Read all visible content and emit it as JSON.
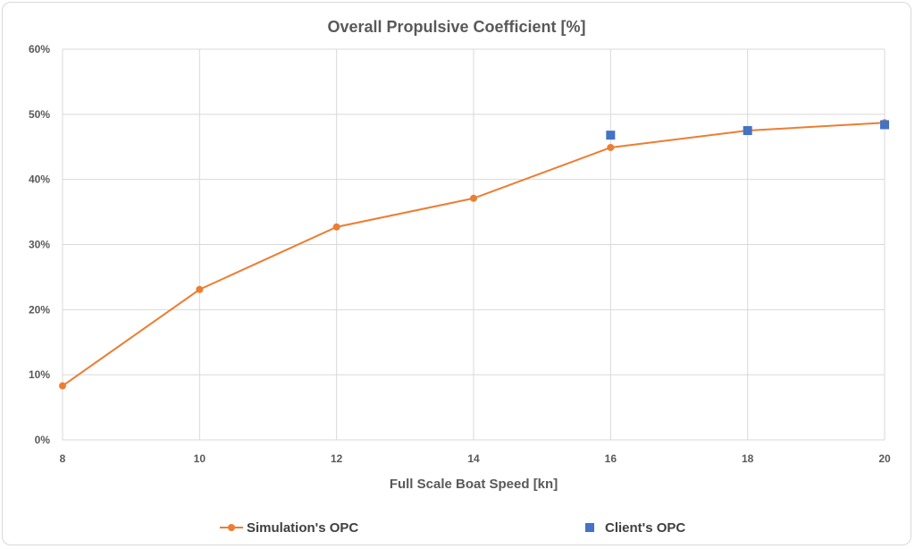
{
  "chart_data": {
    "type": "line",
    "title": "Overall Propulsive Coefficient [%]",
    "xlabel": "Full Scale Boat Speed [kn]",
    "ylabel": "",
    "xlim": [
      8,
      20
    ],
    "ylim": [
      0,
      0.6
    ],
    "x_ticks": [
      "8",
      "10",
      "12",
      "14",
      "16",
      "18",
      "20"
    ],
    "y_ticks": [
      "0%",
      "10%",
      "20%",
      "30%",
      "40%",
      "50%",
      "60%"
    ],
    "grid": true,
    "legend_position": "bottom",
    "series": [
      {
        "name": "Simulation's OPC",
        "style": "line-with-circle-markers",
        "color": "#ED7D31",
        "x": [
          8,
          10,
          12,
          14,
          16,
          18,
          20
        ],
        "y": [
          0.083,
          0.231,
          0.327,
          0.371,
          0.449,
          0.475,
          0.487
        ]
      },
      {
        "name": "Client's OPC",
        "style": "square-markers",
        "color": "#4472C4",
        "x": [
          16,
          18,
          20
        ],
        "y": [
          0.468,
          0.475,
          0.484
        ]
      }
    ]
  }
}
